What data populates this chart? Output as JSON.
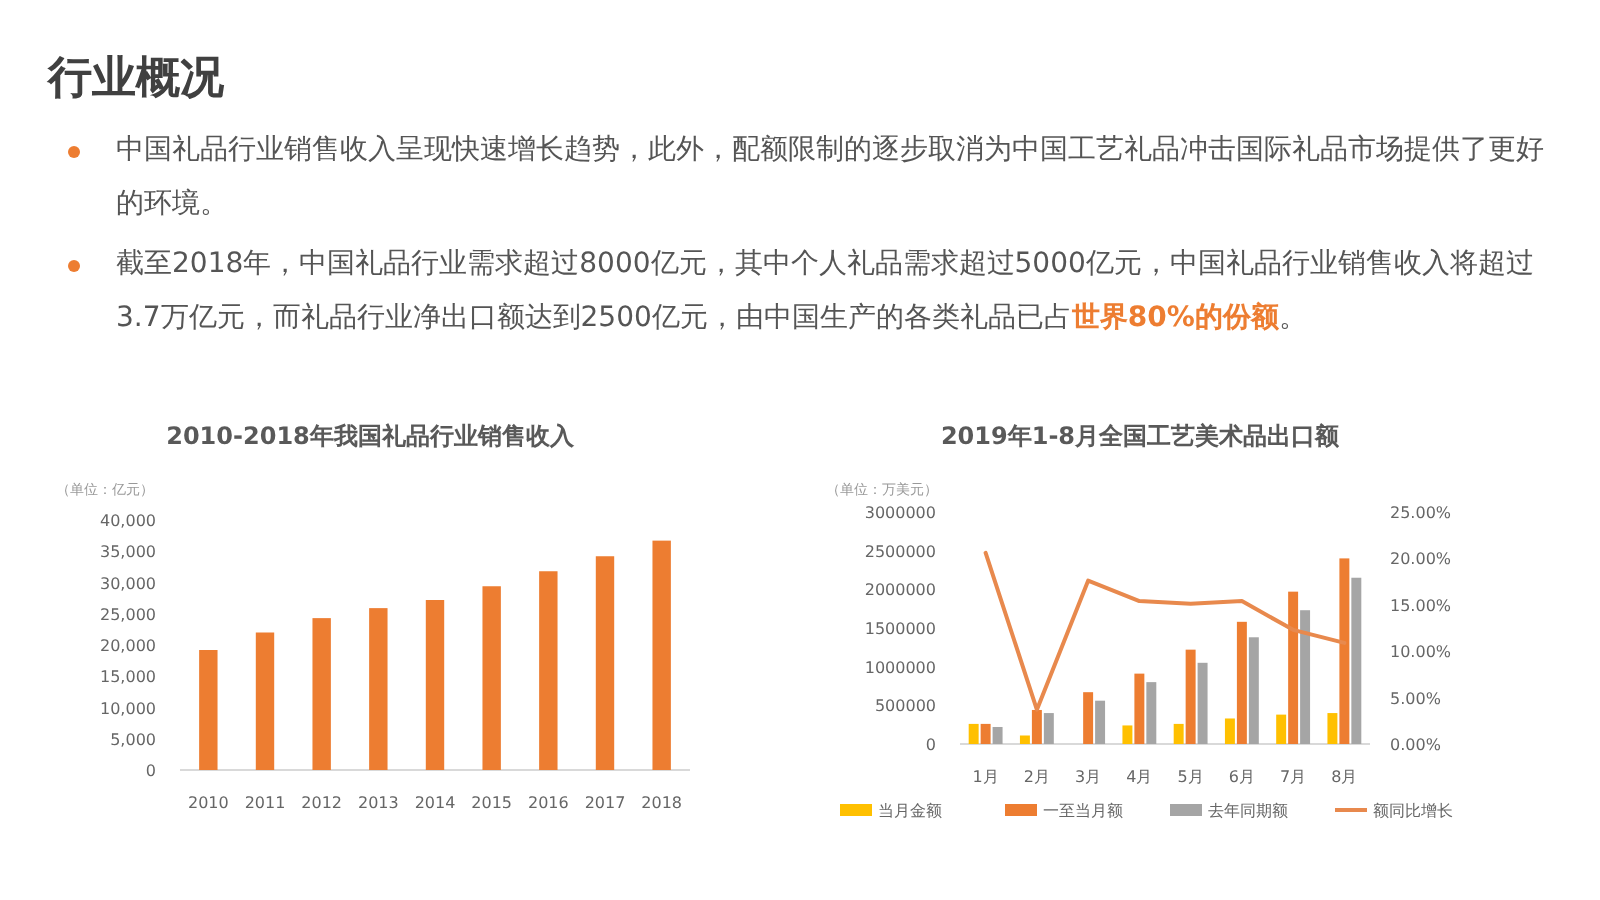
{
  "chart_data": [
    {
      "type": "other",
      "title": "行业概况",
      "annotations": [
        "中国礼品行业销售收入呈现快速增长趋势，此外，配额限制的逐步取消为中国工艺礼品冲击国际礼品市场提供了更好的环境。",
        "截至2018年，中国礼品行业需求超过8000亿元，其中个人礼品需求超过5000亿元，中国礼品行业销售收入将超过3.7万亿元，而礼品行业净出口额达到2500亿元，由中国生产的各类礼品已占**世界80%的份额**。"
      ]
    },
    {
      "type": "bar",
      "title": "2010-2018年我国礼品行业销售收入",
      "ylabel": "（单位：亿元）",
      "categories": [
        "2010",
        "2011",
        "2012",
        "2013",
        "2014",
        "2015",
        "2016",
        "2017",
        "2018"
      ],
      "values": [
        19200,
        22000,
        24300,
        25900,
        27200,
        29400,
        31800,
        34200,
        36700
      ],
      "color": "#ed7d31",
      "ylim": [
        0,
        40000
      ],
      "yticks": [
        0,
        {
          "value": 5000,
          "label": "5,000"
        },
        {
          "value": 10000,
          "label": "10,000"
        },
        {
          "value": 15000,
          "label": "15,000"
        },
        {
          "value": 20000,
          "label": "20,000"
        },
        {
          "value": 25000,
          "label": "25,000"
        },
        {
          "value": 30000,
          "label": "30,000"
        },
        {
          "value": 35000,
          "label": "35,000"
        },
        {
          "value": 40000,
          "label": "40,000"
        }
      ]
    },
    {
      "type": "bar",
      "title": "2019年1-8月全国工艺美术品出口额",
      "ylabel": "（单位：万美元）",
      "categories": [
        "1月",
        "2月",
        "3月",
        "4月",
        "5月",
        "6月",
        "7月",
        "8月"
      ],
      "series": [
        {
          "name": "当月金额",
          "color": "#ffc000",
          "values": [
            260000,
            110000,
            null,
            240000,
            260000,
            330000,
            380000,
            400000
          ]
        },
        {
          "name": "一至当月额",
          "color": "#ed7d31",
          "values": [
            260000,
            440000,
            670000,
            910000,
            1220000,
            1580000,
            1970000,
            2400000
          ]
        },
        {
          "name": "去年同期额",
          "color": "#a5a5a5",
          "values": [
            220000,
            400000,
            560000,
            800000,
            1050000,
            1380000,
            1730000,
            2150000
          ]
        },
        {
          "name": "额同比增长",
          "color": "#e8894d",
          "type": "line",
          "axis": "y2",
          "values": [
            20.6,
            3.7,
            17.6,
            15.4,
            15.1,
            15.4,
            12.3,
            10.9
          ]
        }
      ],
      "ylim": [
        0,
        3000000
      ],
      "yticks": [
        0,
        500000,
        1000000,
        1500000,
        2000000,
        2500000,
        3000000
      ],
      "y2lim": [
        0,
        25
      ],
      "y2ticks": [
        {
          "value": 0,
          "label": "0.00%"
        },
        {
          "value": 5,
          "label": "5.00%"
        },
        {
          "value": 10,
          "label": "10.00%"
        },
        {
          "value": 15,
          "label": "15.00%"
        },
        {
          "value": 20,
          "label": "20.00%"
        },
        {
          "value": 25,
          "label": "25.00%"
        }
      ],
      "legend": "bottom"
    }
  ]
}
